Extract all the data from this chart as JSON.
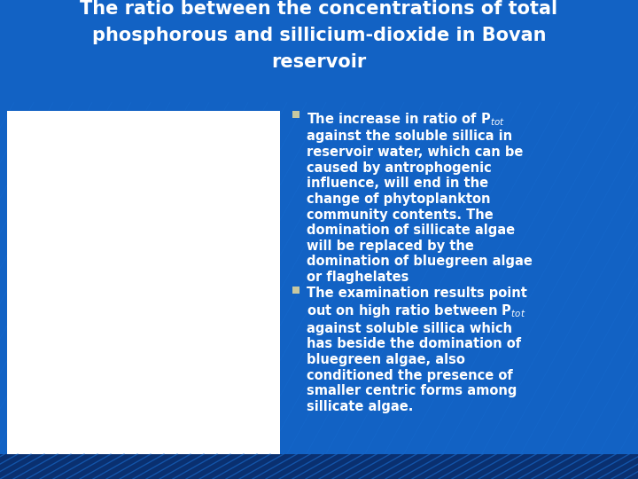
{
  "title_line1": "The ratio between the concentrations of total",
  "title_line2": "phosphorous and sillicium-dioxide in Bovan",
  "title_line3": "reservoir",
  "title_color": "#FFFFFF",
  "title_bg_color": "#1262C4",
  "bg_color": "#1262C4",
  "white_box_color": "#FFFFFF",
  "text_color": "#FFFFFF",
  "bullet_color": "#C8C8A0",
  "font_size_title": 15,
  "font_size_body": 10.5,
  "bottom_strip_color": "#0A3070",
  "diagonal_color": "#1A72D8",
  "bullet1_text": "The increase in ratio of P$_{tot}$\nagainst the soluble sillica in\nreservoir water, which can be\ncaused by antrophogenic\ninfluence, will end in the\nchange of phytoplankton\ncommunity contents. The\ndomination of sillicate algae\nwill be replaced by the\ndomination of bluegreen algae\nor flaghelates",
  "bullet2_text": "The examination results point\nout on high ratio between P$_{tot}$\nagainst soluble sillica which\nhas beside the domination of\nbluegreen algae, also\nconditioned the presence of\nsmaller centric forms among\nsillicate algae."
}
